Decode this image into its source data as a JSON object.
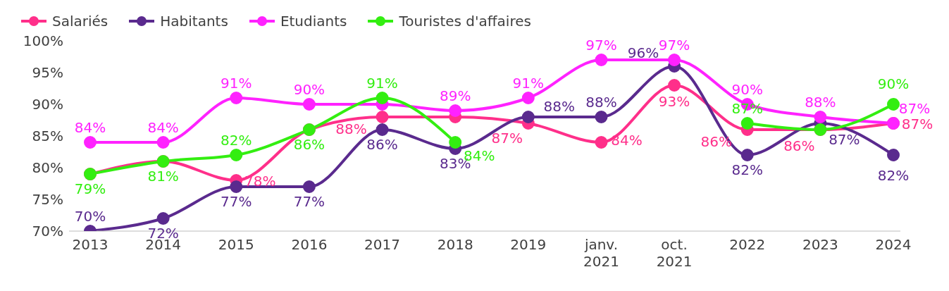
{
  "chart_data": {
    "type": "line",
    "categories": [
      "2013",
      "2014",
      "2015",
      "2016",
      "2017",
      "2018",
      "2019",
      "janv. 2021",
      "oct. 2021",
      "2022",
      "2023",
      "2024"
    ],
    "series": [
      {
        "name": "Salariés",
        "color": "#ff2f8a",
        "values": [
          79,
          81,
          78,
          86,
          88,
          88,
          87,
          84,
          93,
          86,
          86,
          87
        ],
        "value_labels": [
          null,
          null,
          "78%",
          null,
          "88%",
          null,
          "87%",
          "84%",
          "93%",
          "86%",
          "86%",
          "87%"
        ]
      },
      {
        "name": "Habitants",
        "color": "#5a2a8e",
        "values": [
          70,
          72,
          77,
          77,
          86,
          83,
          88,
          88,
          96,
          82,
          87,
          82
        ],
        "value_labels": [
          "70%",
          "72%",
          "77%",
          "77%",
          "86%",
          "83%",
          "88%",
          "88%",
          "96%",
          "82%",
          "87%",
          "82%"
        ]
      },
      {
        "name": "Etudiants",
        "color": "#ff22ff",
        "values": [
          84,
          84,
          91,
          90,
          90,
          89,
          91,
          97,
          97,
          90,
          88,
          87
        ],
        "value_labels": [
          "84%",
          "84%",
          "91%",
          "90%",
          null,
          "89%",
          "91%",
          "97%",
          "97%",
          "90%",
          "88%",
          "87%"
        ]
      },
      {
        "name": "Touristes d'affaires",
        "color": "#33ee11",
        "values": [
          79,
          81,
          82,
          86,
          91,
          84,
          null,
          null,
          null,
          87,
          86,
          90
        ],
        "value_labels": [
          "79%",
          "81%",
          "82%",
          "86%",
          "91%",
          "84%",
          null,
          null,
          null,
          "87%",
          null,
          "90%"
        ]
      }
    ],
    "ylim": [
      70,
      100
    ],
    "yticks": [
      {
        "value": 70,
        "label": "70%"
      },
      {
        "value": 75,
        "label": "75%"
      },
      {
        "value": 80,
        "label": "80%"
      },
      {
        "value": 85,
        "label": "85%"
      },
      {
        "value": 90,
        "label": "90%"
      },
      {
        "value": 95,
        "label": "95%"
      },
      {
        "value": 100,
        "label": "100%"
      }
    ],
    "grid": false,
    "legend": "top",
    "marker": "circle",
    "line_style": "solid"
  }
}
